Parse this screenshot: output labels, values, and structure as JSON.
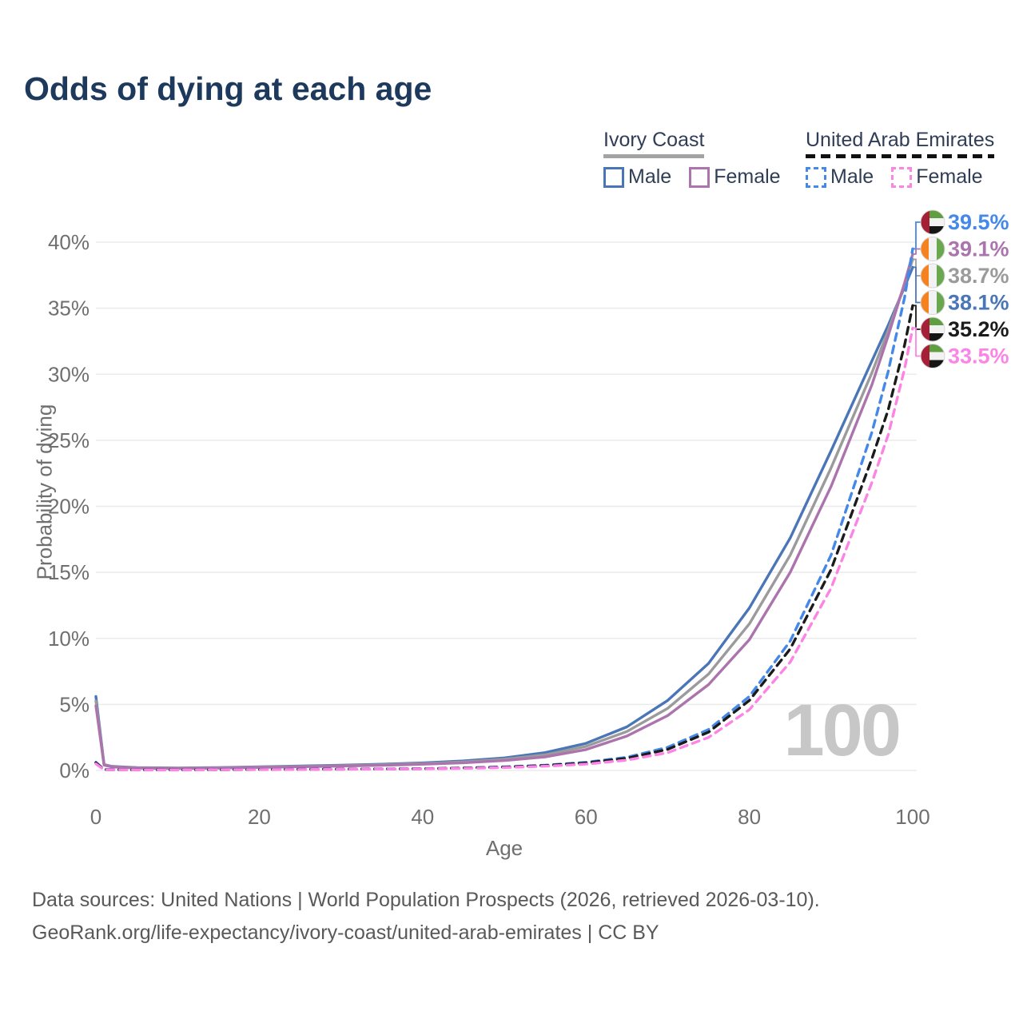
{
  "title": "Odds of dying at each age",
  "legend": {
    "groups": [
      {
        "label": "Ivory Coast",
        "line_style": "solid",
        "line_color": "#a3a3a3",
        "items": [
          {
            "label": "Male",
            "color": "#4a76b8",
            "dash": false
          },
          {
            "label": "Female",
            "color": "#ab74ad",
            "dash": false
          }
        ]
      },
      {
        "label": "United Arab Emirates",
        "line_style": "dashed",
        "line_color": "#111111",
        "items": [
          {
            "label": "Male",
            "color": "#4489e8",
            "dash": true
          },
          {
            "label": "Female",
            "color": "#fb84e4",
            "dash": true
          }
        ]
      }
    ]
  },
  "chart_data": {
    "type": "line",
    "title": "Odds of dying at each age",
    "xlabel": "Age",
    "ylabel": "Probability of dying",
    "xlim": [
      0,
      100
    ],
    "ylim": [
      0,
      40
    ],
    "x_ticks": [
      {
        "value": 0,
        "label": "0"
      },
      {
        "value": 20,
        "label": "20"
      },
      {
        "value": 40,
        "label": "40"
      },
      {
        "value": 60,
        "label": "60"
      },
      {
        "value": 80,
        "label": "80"
      },
      {
        "value": 100,
        "label": "100"
      }
    ],
    "y_ticks": [
      {
        "value": 0,
        "label": "0%"
      },
      {
        "value": 5,
        "label": "5%"
      },
      {
        "value": 10,
        "label": "10%"
      },
      {
        "value": 15,
        "label": "15%"
      },
      {
        "value": 20,
        "label": "20%"
      },
      {
        "value": 25,
        "label": "25%"
      },
      {
        "value": 30,
        "label": "30%"
      },
      {
        "value": 35,
        "label": "35%"
      },
      {
        "value": 40,
        "label": "40%"
      }
    ],
    "grid": "horizontal",
    "gridline_color": "#ebebeb",
    "legend_position": "top-right",
    "watermark": "100",
    "watermark_color": "#c7c7c7",
    "series": [
      {
        "name": "Ivory Coast — Male",
        "country": "ivory-coast",
        "sex": "male",
        "color": "#4a76b8",
        "dash": false,
        "end_label": "38.1%",
        "end_value": 38.1,
        "flag": "ivory_coast",
        "points": [
          [
            0,
            5.6
          ],
          [
            1,
            0.45
          ],
          [
            2,
            0.3
          ],
          [
            5,
            0.22
          ],
          [
            10,
            0.19
          ],
          [
            15,
            0.22
          ],
          [
            20,
            0.28
          ],
          [
            25,
            0.34
          ],
          [
            30,
            0.4
          ],
          [
            35,
            0.47
          ],
          [
            40,
            0.57
          ],
          [
            45,
            0.72
          ],
          [
            50,
            0.95
          ],
          [
            55,
            1.35
          ],
          [
            60,
            2.05
          ],
          [
            65,
            3.3
          ],
          [
            70,
            5.3
          ],
          [
            75,
            8.1
          ],
          [
            80,
            12.3
          ],
          [
            85,
            17.6
          ],
          [
            90,
            24.2
          ],
          [
            95,
            31.0
          ],
          [
            97,
            33.7
          ],
          [
            99,
            36.6
          ],
          [
            100,
            38.1
          ]
        ]
      },
      {
        "name": "Ivory Coast — Both sexes",
        "country": "ivory-coast",
        "sex": "both",
        "color": "#9b9b9b",
        "dash": false,
        "end_label": "38.7%",
        "end_value": 38.7,
        "flag": "ivory_coast",
        "points": [
          [
            0,
            5.25
          ],
          [
            1,
            0.43
          ],
          [
            2,
            0.28
          ],
          [
            5,
            0.2
          ],
          [
            10,
            0.17
          ],
          [
            15,
            0.2
          ],
          [
            20,
            0.26
          ],
          [
            25,
            0.31
          ],
          [
            30,
            0.36
          ],
          [
            35,
            0.43
          ],
          [
            40,
            0.52
          ],
          [
            45,
            0.65
          ],
          [
            50,
            0.85
          ],
          [
            55,
            1.18
          ],
          [
            60,
            1.82
          ],
          [
            65,
            2.95
          ],
          [
            70,
            4.7
          ],
          [
            75,
            7.3
          ],
          [
            80,
            11.1
          ],
          [
            85,
            16.3
          ],
          [
            90,
            22.9
          ],
          [
            95,
            30.1
          ],
          [
            97,
            33.3
          ],
          [
            99,
            36.8
          ],
          [
            100,
            38.7
          ]
        ]
      },
      {
        "name": "Ivory Coast — Female",
        "country": "ivory-coast",
        "sex": "female",
        "color": "#ab74ad",
        "dash": false,
        "end_label": "39.1%",
        "end_value": 39.1,
        "flag": "ivory_coast",
        "points": [
          [
            0,
            4.9
          ],
          [
            1,
            0.4
          ],
          [
            2,
            0.26
          ],
          [
            5,
            0.18
          ],
          [
            10,
            0.15
          ],
          [
            15,
            0.18
          ],
          [
            20,
            0.23
          ],
          [
            25,
            0.28
          ],
          [
            30,
            0.33
          ],
          [
            35,
            0.39
          ],
          [
            40,
            0.47
          ],
          [
            45,
            0.58
          ],
          [
            50,
            0.75
          ],
          [
            55,
            1.02
          ],
          [
            60,
            1.58
          ],
          [
            65,
            2.6
          ],
          [
            70,
            4.15
          ],
          [
            75,
            6.5
          ],
          [
            80,
            9.9
          ],
          [
            85,
            15.0
          ],
          [
            90,
            21.5
          ],
          [
            95,
            29.2
          ],
          [
            97,
            32.9
          ],
          [
            99,
            36.9
          ],
          [
            100,
            39.1
          ]
        ]
      },
      {
        "name": "United Arab Emirates — Male",
        "country": "uae",
        "sex": "male",
        "color": "#4489e8",
        "dash": true,
        "end_label": "39.5%",
        "end_value": 39.5,
        "flag": "uae",
        "points": [
          [
            0,
            0.62
          ],
          [
            1,
            0.07
          ],
          [
            5,
            0.04
          ],
          [
            10,
            0.04
          ],
          [
            15,
            0.06
          ],
          [
            20,
            0.08
          ],
          [
            25,
            0.09
          ],
          [
            30,
            0.1
          ],
          [
            35,
            0.12
          ],
          [
            40,
            0.14
          ],
          [
            45,
            0.19
          ],
          [
            50,
            0.27
          ],
          [
            55,
            0.4
          ],
          [
            60,
            0.62
          ],
          [
            65,
            1.0
          ],
          [
            70,
            1.75
          ],
          [
            75,
            3.1
          ],
          [
            80,
            5.6
          ],
          [
            85,
            9.8
          ],
          [
            90,
            16.3
          ],
          [
            95,
            25.6
          ],
          [
            97,
            30.2
          ],
          [
            99,
            35.8
          ],
          [
            100,
            39.5
          ]
        ]
      },
      {
        "name": "United Arab Emirates — Both sexes",
        "country": "uae",
        "sex": "both",
        "color": "#1b1b1b",
        "dash": true,
        "end_label": "35.2%",
        "end_value": 35.2,
        "flag": "uae",
        "points": [
          [
            0,
            0.58
          ],
          [
            1,
            0.065
          ],
          [
            5,
            0.04
          ],
          [
            10,
            0.04
          ],
          [
            15,
            0.055
          ],
          [
            20,
            0.075
          ],
          [
            25,
            0.085
          ],
          [
            30,
            0.095
          ],
          [
            35,
            0.11
          ],
          [
            40,
            0.13
          ],
          [
            45,
            0.18
          ],
          [
            50,
            0.25
          ],
          [
            55,
            0.37
          ],
          [
            60,
            0.57
          ],
          [
            65,
            0.92
          ],
          [
            70,
            1.6
          ],
          [
            75,
            2.9
          ],
          [
            80,
            5.3
          ],
          [
            85,
            9.2
          ],
          [
            90,
            15.2
          ],
          [
            95,
            23.6
          ],
          [
            97,
            27.3
          ],
          [
            99,
            32.2
          ],
          [
            100,
            35.2
          ]
        ]
      },
      {
        "name": "United Arab Emirates — Female",
        "country": "uae",
        "sex": "female",
        "color": "#fb84e4",
        "dash": true,
        "end_label": "33.5%",
        "end_value": 33.5,
        "flag": "uae",
        "points": [
          [
            0,
            0.5
          ],
          [
            1,
            0.055
          ],
          [
            5,
            0.035
          ],
          [
            10,
            0.035
          ],
          [
            15,
            0.05
          ],
          [
            20,
            0.065
          ],
          [
            25,
            0.075
          ],
          [
            30,
            0.085
          ],
          [
            35,
            0.1
          ],
          [
            40,
            0.12
          ],
          [
            45,
            0.16
          ],
          [
            50,
            0.22
          ],
          [
            55,
            0.32
          ],
          [
            60,
            0.48
          ],
          [
            65,
            0.78
          ],
          [
            70,
            1.35
          ],
          [
            75,
            2.5
          ],
          [
            80,
            4.6
          ],
          [
            85,
            8.2
          ],
          [
            90,
            13.8
          ],
          [
            95,
            21.8
          ],
          [
            97,
            25.4
          ],
          [
            99,
            30.4
          ],
          [
            100,
            33.5
          ]
        ]
      }
    ]
  },
  "flags": {
    "ivory_coast": {
      "orange": "#f5821f",
      "white": "#f2f2f2",
      "green": "#6aa84f"
    },
    "uae": {
      "red": "#a51f36",
      "green": "#5f9e41",
      "white": "#f2f2f2",
      "black": "#151515"
    }
  },
  "axis": {
    "xlabel": "Age",
    "ylabel": "Probability of dying"
  },
  "watermark": "100",
  "footer": {
    "line1": "Data sources: United Nations | World Population Prospects (2026, retrieved 2026-03-10).",
    "line2": "GeoRank.org/life-expectancy/ivory-coast/united-arab-emirates | CC BY"
  },
  "colors": {
    "title": "#1d3a5c",
    "legend_text": "#2f3e56",
    "axis_text": "#6f6f6f",
    "gridline": "#ebebeb",
    "watermark": "#c7c7c7",
    "footer_text": "#595959"
  }
}
